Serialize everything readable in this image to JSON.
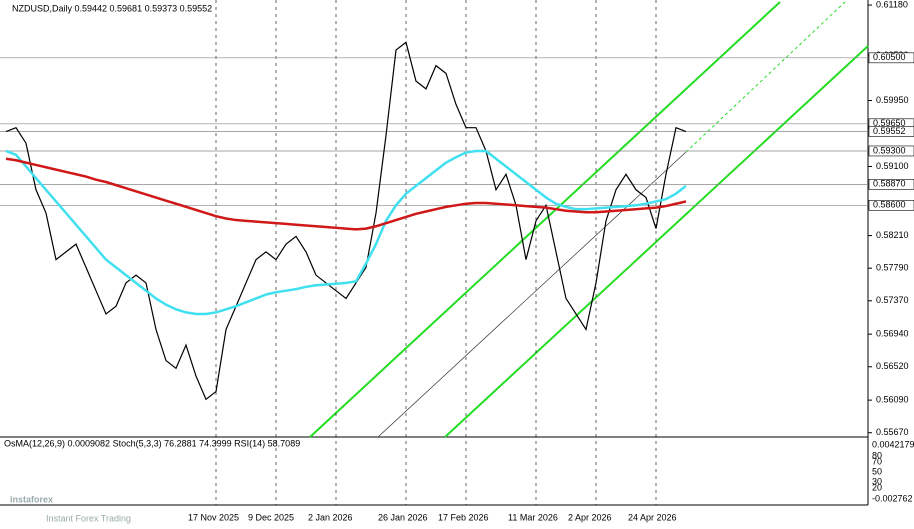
{
  "chart_data": {
    "type": "line",
    "title": "NZDUSD,Daily  0.59442 0.59681 0.59373 0.59552",
    "categories": [
      null,
      null,
      null,
      null,
      null,
      null,
      null,
      null,
      null,
      null,
      null,
      null,
      null,
      null,
      null,
      null,
      null,
      null,
      null,
      null,
      null,
      "17 Nov 2025",
      null,
      null,
      null,
      null,
      null,
      "9 Dec 2025",
      null,
      null,
      null,
      null,
      null,
      "2 Jan 2026",
      null,
      null,
      null,
      null,
      null,
      null,
      "26 Jan 2026",
      null,
      null,
      null,
      null,
      null,
      "17 Feb 2026",
      null,
      null,
      null,
      null,
      null,
      null,
      "11 Mar 2026",
      null,
      null,
      null,
      null,
      null,
      "2 Apr 2026",
      null,
      null,
      null,
      null,
      null,
      "24 Apr 2026",
      null,
      null,
      null
    ],
    "series": [
      {
        "color": "#000000",
        "values": [
          0.5955,
          0.596,
          0.594,
          0.588,
          0.585,
          0.579,
          0.58,
          0.581,
          0.578,
          0.575,
          0.572,
          0.573,
          0.576,
          0.577,
          0.576,
          0.57,
          0.566,
          0.565,
          0.568,
          0.564,
          0.561,
          0.562,
          0.57,
          0.573,
          0.576,
          0.579,
          0.58,
          0.579,
          0.581,
          0.582,
          0.58,
          0.577,
          0.576,
          0.575,
          0.574,
          0.576,
          0.578,
          0.585,
          0.595,
          0.606,
          0.607,
          0.602,
          0.601,
          0.604,
          0.603,
          0.599,
          0.596,
          0.596,
          0.593,
          0.588,
          0.59,
          0.586,
          0.579,
          0.584,
          0.586,
          0.58,
          0.574,
          0.572,
          0.57,
          0.576,
          0.584,
          0.588,
          0.59,
          0.588,
          0.587,
          0.583,
          0.59,
          0.596,
          0.5955
        ]
      },
      {
        "color": "#40e0f0",
        "values": [
          0.593,
          0.5925,
          0.591,
          0.5895,
          0.588,
          0.5865,
          0.585,
          0.5835,
          0.582,
          0.5805,
          0.579,
          0.578,
          0.577,
          0.576,
          0.575,
          0.574,
          0.5732,
          0.5726,
          0.5722,
          0.572,
          0.572,
          0.5722,
          0.5726,
          0.573,
          0.5735,
          0.574,
          0.5745,
          0.5748,
          0.575,
          0.5752,
          0.5755,
          0.5757,
          0.5758,
          0.5759,
          0.576,
          0.5762,
          0.5785,
          0.581,
          0.584,
          0.586,
          0.5875,
          0.5885,
          0.5895,
          0.5905,
          0.5915,
          0.5922,
          0.5928,
          0.593,
          0.593,
          0.592,
          0.591,
          0.59,
          0.589,
          0.588,
          0.587,
          0.5862,
          0.5858,
          0.5855,
          0.5855,
          0.5856,
          0.5857,
          0.5858,
          0.5859,
          0.586,
          0.5862,
          0.5865,
          0.5868,
          0.5875,
          0.5885
        ]
      },
      {
        "color": "#d01818",
        "values": [
          0.592,
          0.5918,
          0.5915,
          0.5912,
          0.5909,
          0.5906,
          0.5903,
          0.59,
          0.5897,
          0.5893,
          0.589,
          0.5886,
          0.5882,
          0.5878,
          0.5874,
          0.587,
          0.5866,
          0.5862,
          0.5858,
          0.5854,
          0.585,
          0.5846,
          0.5843,
          0.5841,
          0.584,
          0.5839,
          0.5838,
          0.5837,
          0.5836,
          0.5835,
          0.5834,
          0.5833,
          0.5832,
          0.5831,
          0.583,
          0.5829,
          0.583,
          0.5833,
          0.5837,
          0.5841,
          0.5845,
          0.5849,
          0.5852,
          0.5855,
          0.5858,
          0.586,
          0.5862,
          0.5863,
          0.5863,
          0.5862,
          0.5861,
          0.586,
          0.5859,
          0.5858,
          0.5857,
          0.5855,
          0.5853,
          0.5852,
          0.5851,
          0.5851,
          0.5852,
          0.5853,
          0.5854,
          0.5855,
          0.5856,
          0.5857,
          0.5859,
          0.5862,
          0.5865
        ]
      }
    ],
    "ylim": [
      0.55615,
      0.61245
    ],
    "yticks": [
      {
        "value": 0.6118,
        "label": "0.61180"
      },
      {
        "value": 0.6053,
        "label": "0.60530"
      },
      {
        "value": 0.5995,
        "label": "0.59950"
      },
      {
        "value": 0.591,
        "label": "0.59100"
      },
      {
        "value": 0.5821,
        "label": "0.58210"
      },
      {
        "value": 0.5779,
        "label": "0.57790"
      },
      {
        "value": 0.5737,
        "label": "0.57370"
      },
      {
        "value": 0.5694,
        "label": "0.56940"
      },
      {
        "value": 0.5652,
        "label": "0.56520"
      },
      {
        "value": 0.5609,
        "label": "0.56090"
      },
      {
        "value": 0.5567,
        "label": "0.55670"
      }
    ],
    "levels": [
      {
        "value": 0.605,
        "label": "0.60500"
      },
      {
        "value": 0.5965,
        "label": "0.59650"
      },
      {
        "value": 0.59552,
        "label": "0.59552"
      },
      {
        "value": 0.593,
        "label": "0.59300"
      },
      {
        "value": 0.5887,
        "label": "0.58870"
      },
      {
        "value": 0.586,
        "label": "0.58600"
      }
    ],
    "grid": true
  },
  "indicator": {
    "title": "OsMA(12,26,9) 0.0009082  Stoch(5,3,3) 76.2881 74.3999  RSI(14) 58.7089",
    "labels": [
      "0.0042179",
      "80",
      "70",
      "50",
      "30",
      "20",
      "-0.002762"
    ]
  },
  "logo": {
    "name": "instaforex",
    "tagline": "Instant Forex Trading"
  }
}
